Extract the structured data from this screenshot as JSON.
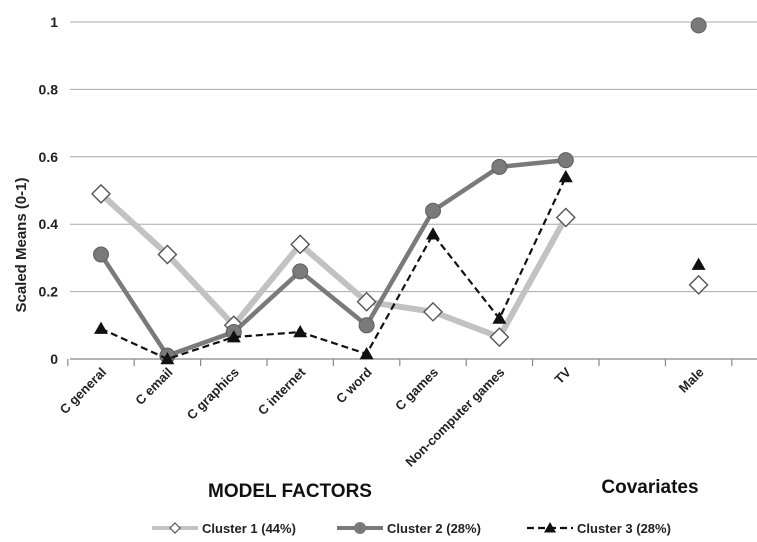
{
  "chart_data": {
    "type": "line",
    "ylabel": "Scaled Means (0-1)",
    "ylim": [
      0,
      1
    ],
    "yticks": [
      0,
      0.2,
      0.4,
      0.6,
      0.8,
      1
    ],
    "ytick_labels": [
      "0",
      "0.2",
      "0.4",
      "0.6",
      "0.8",
      "1"
    ],
    "grid": true,
    "categories": [
      "C general",
      "C email",
      "C graphics",
      "C internet",
      "C word",
      "C games",
      "Non-computer games",
      "TV",
      "",
      "Male"
    ],
    "group_labels": [
      "MODEL FACTORS",
      "Covariates"
    ],
    "legend_position": "bottom",
    "series": [
      {
        "name": "Cluster 1 (44%)",
        "marker": "diamond",
        "line": "solid",
        "color": "#c2c2c2",
        "segments": [
          [
            0,
            7
          ],
          [
            9,
            9
          ]
        ],
        "values": [
          0.49,
          0.31,
          0.1,
          0.34,
          0.17,
          0.14,
          0.065,
          0.42,
          null,
          0.22
        ]
      },
      {
        "name": "Cluster 2 (28%)",
        "marker": "circle",
        "line": "solid",
        "color": "#7a7a7a",
        "segments": [
          [
            0,
            7
          ],
          [
            9,
            9
          ]
        ],
        "values": [
          0.31,
          0.01,
          0.08,
          0.26,
          0.1,
          0.44,
          0.57,
          0.59,
          null,
          0.99
        ]
      },
      {
        "name": "Cluster 3 (28%)",
        "marker": "triangle",
        "line": "dashed",
        "color": "#111111",
        "segments": [
          [
            0,
            7
          ],
          [
            9,
            9
          ]
        ],
        "values": [
          0.09,
          0.0,
          0.065,
          0.08,
          0.015,
          0.37,
          0.12,
          0.54,
          null,
          0.28
        ]
      }
    ]
  }
}
